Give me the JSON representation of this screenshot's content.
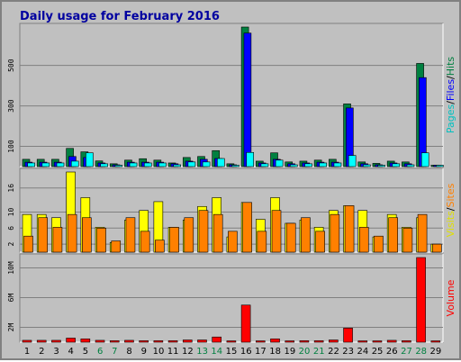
{
  "title": "Daily usage for February 2016",
  "colors": {
    "background": "#c0c0c0",
    "title": "#0000a0",
    "hits": "#008040",
    "files": "#0000ff",
    "pages": "#00ffff",
    "visits": "#ffff00",
    "sites": "#ff8000",
    "volume": "#ff0000",
    "weekend_label": "#008040",
    "weekday_label": "#000000"
  },
  "side_labels": {
    "top": [
      {
        "text": "Pages",
        "color": "#00c0c0"
      },
      {
        "text": "/",
        "color": "#000000"
      },
      {
        "text": "Files",
        "color": "#0000ff"
      },
      {
        "text": "/",
        "color": "#000000"
      },
      {
        "text": "Hits",
        "color": "#008040"
      }
    ],
    "middle": [
      {
        "text": "Visits",
        "color": "#e0e000"
      },
      {
        "text": "/",
        "color": "#000000"
      },
      {
        "text": "Sites",
        "color": "#ff8000"
      }
    ],
    "bottom": [
      {
        "text": "Volume",
        "color": "#ff0000"
      }
    ]
  },
  "chart_data": {
    "type": "bar",
    "title": "Daily usage for February 2016",
    "days": [
      "1",
      "2",
      "3",
      "4",
      "5",
      "6",
      "7",
      "8",
      "9",
      "10",
      "11",
      "12",
      "13",
      "14",
      "15",
      "16",
      "17",
      "18",
      "19",
      "20",
      "21",
      "22",
      "23",
      "24",
      "25",
      "26",
      "27",
      "28",
      "29"
    ],
    "weekend_days": [
      "6",
      "7",
      "13",
      "14",
      "20",
      "21",
      "27",
      "28"
    ],
    "panels": [
      {
        "name": "hits-files-pages",
        "ticks": [
          "100",
          "300",
          "500"
        ],
        "tick_values": [
          100,
          300,
          500
        ],
        "ylim": [
          0,
          690
        ],
        "series": [
          {
            "name": "Hits",
            "values": [
              36,
              36,
              36,
              90,
              73,
              28,
              14,
              32,
              39,
              32,
              18,
              45,
              50,
              79,
              14,
              690,
              27,
              68,
              23,
              27,
              32,
              36,
              310,
              23,
              16,
              27,
              23,
              510,
              0
            ]
          },
          {
            "name": "Files",
            "values": [
              22,
              22,
              22,
              50,
              45,
              18,
              9,
              22,
              22,
              22,
              14,
              27,
              36,
              40,
              9,
              660,
              18,
              36,
              14,
              18,
              22,
              22,
              290,
              14,
              9,
              18,
              14,
              440,
              0
            ]
          },
          {
            "name": "Pages",
            "values": [
              18,
              18,
              18,
              27,
              68,
              14,
              5,
              18,
              18,
              18,
              9,
              23,
              23,
              40,
              5,
              70,
              14,
              32,
              9,
              14,
              18,
              18,
              55,
              9,
              5,
              14,
              9,
              68,
              0
            ]
          }
        ]
      },
      {
        "name": "visits-sites",
        "ticks": [
          "2",
          "6",
          "10",
          "16"
        ],
        "tick_values": [
          2,
          6,
          10,
          16
        ],
        "ylim": [
          0,
          20
        ],
        "series": [
          {
            "name": "Visits",
            "values": [
              9.4,
              9.4,
              8.6,
              20,
              13.6,
              6.2,
              2.4,
              8,
              10.4,
              12.6,
              6.2,
              8,
              11.4,
              13.6,
              3.8,
              12.4,
              8.2,
              13.6,
              7.2,
              8,
              6.2,
              10.4,
              11.6,
              10.4,
              3.8,
              9.4,
              6.2,
              8.6,
              2
            ]
          },
          {
            "name": "Sites",
            "values": [
              4,
              8.6,
              6.2,
              9.4,
              8.6,
              6,
              2.8,
              8.6,
              5.2,
              3,
              6.2,
              8.6,
              10.4,
              9.4,
              5.2,
              12.4,
              5.2,
              10.4,
              7.2,
              8.6,
              5.2,
              9.4,
              11.6,
              6.2,
              4,
              8.6,
              6,
              9.4,
              2
            ]
          }
        ]
      },
      {
        "name": "volume",
        "ticks": [
          "2M",
          "6M",
          "10M"
        ],
        "tick_values": [
          2,
          6,
          10
        ],
        "ylim": [
          0,
          11.4
        ],
        "series": [
          {
            "name": "Volume",
            "values": [
              0.25,
              0.25,
              0.25,
              0.55,
              0.45,
              0.25,
              0.2,
              0.25,
              0.2,
              0.2,
              0.2,
              0.3,
              0.3,
              0.7,
              0.15,
              5,
              0.15,
              0.45,
              0.15,
              0.2,
              0.2,
              0.3,
              1.9,
              0.15,
              0.1,
              0.25,
              0.2,
              11.4,
              0.05
            ]
          }
        ]
      }
    ]
  }
}
